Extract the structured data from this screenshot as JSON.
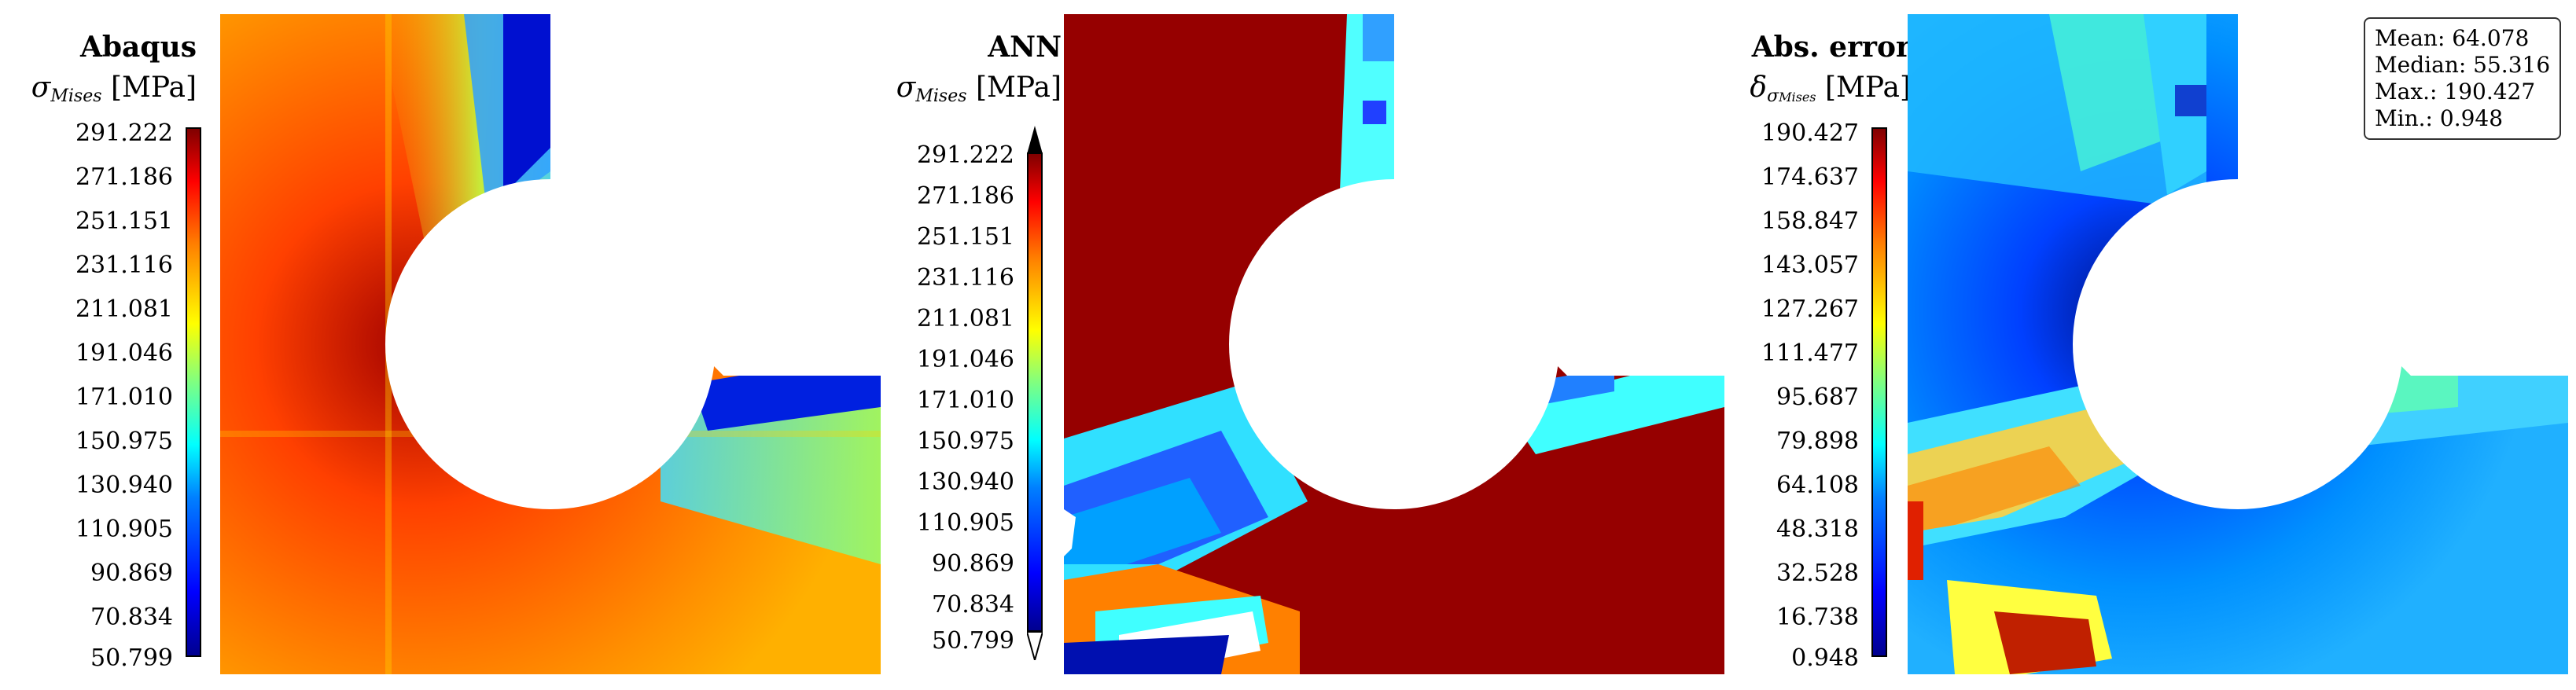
{
  "panels": [
    {
      "title": "Abaqus",
      "quantity_symbol": "σ",
      "quantity_subscript": "Mises",
      "unit": "[MPa]",
      "colorbar_ticks": [
        "291.222",
        "271.186",
        "251.151",
        "231.116",
        "211.081",
        "191.046",
        "171.010",
        "150.975",
        "130.940",
        "110.905",
        "90.869",
        "70.834",
        "50.799"
      ],
      "colorbar_extend_arrows": false
    },
    {
      "title": "ANN",
      "quantity_symbol": "σ",
      "quantity_subscript": "Mises",
      "unit": "[MPa]",
      "colorbar_ticks": [
        "291.222",
        "271.186",
        "251.151",
        "231.116",
        "211.081",
        "191.046",
        "171.010",
        "150.975",
        "130.940",
        "110.905",
        "90.869",
        "70.834",
        "50.799"
      ],
      "colorbar_extend_arrows": true
    },
    {
      "title": "Abs. error",
      "quantity_symbol": "δ",
      "quantity_subscript": "σ",
      "quantity_subsubscript": "Mises",
      "unit": "[MPa]",
      "colorbar_ticks": [
        "190.427",
        "174.637",
        "158.847",
        "143.057",
        "127.267",
        "111.477",
        "95.687",
        "79.898",
        "64.108",
        "48.318",
        "32.528",
        "16.738",
        "0.948"
      ],
      "colorbar_extend_arrows": false,
      "stats": {
        "mean": "Mean: 64.078",
        "median": "Median: 55.316",
        "max": "Max.: 190.427",
        "min": "Min.: 0.948"
      }
    }
  ],
  "colormap": "jet"
}
